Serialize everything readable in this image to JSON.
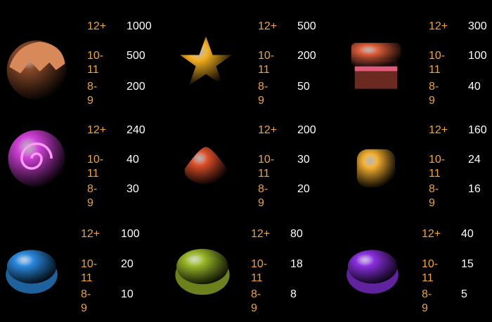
{
  "colors": {
    "count": "#f0a52c",
    "value": "#ffffff",
    "background": "#000000"
  },
  "symbols": [
    {
      "icon": "chocolate-donut-icon",
      "color": "#8a4a2a",
      "pays": [
        {
          "count": "12+",
          "value": "1000"
        },
        {
          "count": "10-11",
          "value": "500"
        },
        {
          "count": "8-9",
          "value": "200"
        }
      ]
    },
    {
      "icon": "star-candy-icon",
      "color": "#f5b020",
      "pays": [
        {
          "count": "12+",
          "value": "500"
        },
        {
          "count": "10-11",
          "value": "200"
        },
        {
          "count": "8-9",
          "value": "50"
        }
      ]
    },
    {
      "icon": "cake-icon",
      "color": "#e0603a",
      "pays": [
        {
          "count": "12+",
          "value": "300"
        },
        {
          "count": "10-11",
          "value": "100"
        },
        {
          "count": "8-9",
          "value": "40"
        }
      ]
    },
    {
      "icon": "swirl-lollipop-icon",
      "color": "#d040d8",
      "pays": [
        {
          "count": "12+",
          "value": "240"
        },
        {
          "count": "10-11",
          "value": "40"
        },
        {
          "count": "8-9",
          "value": "30"
        }
      ]
    },
    {
      "icon": "red-triangle-candy-icon",
      "color": "#e0502a",
      "pays": [
        {
          "count": "12+",
          "value": "200"
        },
        {
          "count": "10-11",
          "value": "30"
        },
        {
          "count": "8-9",
          "value": "20"
        }
      ]
    },
    {
      "icon": "yellow-square-candy-icon",
      "color": "#f5b030",
      "pays": [
        {
          "count": "12+",
          "value": "160"
        },
        {
          "count": "10-11",
          "value": "24"
        },
        {
          "count": "8-9",
          "value": "16"
        }
      ]
    },
    {
      "icon": "blue-gem-candy-icon",
      "color": "#2a8ae0",
      "pays": [
        {
          "count": "12+",
          "value": "100"
        },
        {
          "count": "10-11",
          "value": "20"
        },
        {
          "count": "8-9",
          "value": "10"
        }
      ]
    },
    {
      "icon": "green-gem-candy-icon",
      "color": "#9ab828",
      "pays": [
        {
          "count": "12+",
          "value": "80"
        },
        {
          "count": "10-11",
          "value": "18"
        },
        {
          "count": "8-9",
          "value": "8"
        }
      ]
    },
    {
      "icon": "purple-gem-candy-icon",
      "color": "#8a30e0",
      "pays": [
        {
          "count": "12+",
          "value": "40"
        },
        {
          "count": "10-11",
          "value": "15"
        },
        {
          "count": "8-9",
          "value": "5"
        }
      ]
    }
  ]
}
